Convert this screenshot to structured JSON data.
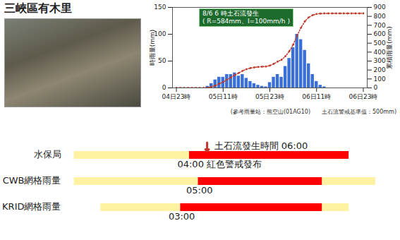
{
  "title": "三峽區有木里",
  "chart_data": [
    {
      "type": "bar",
      "x": [
        0,
        1,
        2,
        3,
        4,
        5,
        6,
        7,
        8,
        9,
        10,
        11,
        12,
        13,
        14,
        15,
        16,
        17,
        18,
        19,
        20,
        21,
        22,
        23,
        24,
        25,
        26,
        27,
        28,
        29,
        30,
        31,
        32,
        33,
        34,
        35,
        36,
        37,
        38,
        39,
        40,
        41,
        42,
        43,
        44,
        45,
        46,
        47,
        48
      ],
      "xlim": [
        -1,
        49
      ],
      "xticks": [
        {
          "value": 0,
          "label": "04日23時"
        },
        {
          "value": 12,
          "label": "05日11時"
        },
        {
          "value": 24,
          "label": "05日23時"
        },
        {
          "value": 36,
          "label": "06日11時"
        },
        {
          "value": 48,
          "label": "06日23時"
        }
      ],
      "ylabel": "時雨量(mm)",
      "ylim": [
        0,
        150
      ],
      "yticks": [
        0,
        50,
        100,
        150
      ],
      "y2label": "累積雨量(mm)",
      "y2lim": [
        0,
        900
      ],
      "y2ticks": [
        0,
        100,
        200,
        300,
        400,
        500,
        600,
        700,
        800,
        900
      ],
      "series": [
        {
          "type": "bar",
          "color": "#3a6fd8",
          "values": [
            0,
            0,
            0,
            0,
            0,
            0,
            0,
            0,
            3,
            8,
            15,
            20,
            20,
            25,
            25,
            28,
            22,
            25,
            18,
            12,
            8,
            5,
            3,
            2,
            10,
            20,
            25,
            20,
            40,
            55,
            75,
            100,
            90,
            70,
            45,
            25,
            12,
            5,
            2,
            0,
            0,
            0,
            0,
            0,
            0,
            0,
            0,
            0,
            0
          ]
        },
        {
          "type": "line",
          "axis": "y2",
          "color": "#c0392b",
          "marker": "dot",
          "line_style": "dotted",
          "values": [
            0,
            0,
            0,
            0,
            0,
            0,
            0,
            0,
            3,
            11,
            26,
            46,
            66,
            91,
            116,
            144,
            166,
            191,
            209,
            221,
            229,
            234,
            237,
            239,
            249,
            269,
            294,
            314,
            354,
            409,
            484,
            584,
            674,
            744,
            789,
            814,
            826,
            831,
            833,
            833,
            833,
            833,
            833,
            833,
            833,
            833,
            833,
            833,
            833
          ]
        }
      ],
      "annotations": [
        "8/6 6 時土石流發生",
        "( R=584mm、I=100mm/h )"
      ],
      "note": "(參考雨量站：熊空山(01AG10)　　土石流警戒基準值：500mm)"
    },
    {
      "type": "timeline",
      "orientation": "horizontal",
      "tick_labels": "y",
      "xlim": [
        -10,
        27
      ],
      "categories": [
        "水保局",
        "CWB網格雨量",
        "KRID網格雨量"
      ],
      "segments": [
        [
          {
            "start": -9,
            "end": 4,
            "color": "#fff3a3"
          },
          {
            "start": 4,
            "end": 22,
            "color": "#ff0000"
          }
        ],
        [
          {
            "start": -9,
            "end": 5,
            "color": "#fff3a3"
          },
          {
            "start": 5,
            "end": 19,
            "color": "#ff0000"
          },
          {
            "start": 19,
            "end": 25,
            "color": "#fff3a3"
          }
        ],
        [
          {
            "start": -6,
            "end": 3,
            "color": "#fff3a3"
          },
          {
            "start": 3,
            "end": 19,
            "color": "#ff0000"
          },
          {
            "start": 19,
            "end": 22,
            "color": "#fff3a3"
          }
        ]
      ],
      "event_label": {
        "text": "土石流發生時間 06:00",
        "x": 6,
        "row": "水保局"
      },
      "annotations": [
        {
          "text": "04:00 紅色警戒發布",
          "x": 4,
          "row": "水保局"
        },
        {
          "text": "05:00",
          "x": 5,
          "row": "CWB網格雨量"
        },
        {
          "text": "03:00",
          "x": 3,
          "row": "KRID網格雨量"
        }
      ]
    }
  ]
}
